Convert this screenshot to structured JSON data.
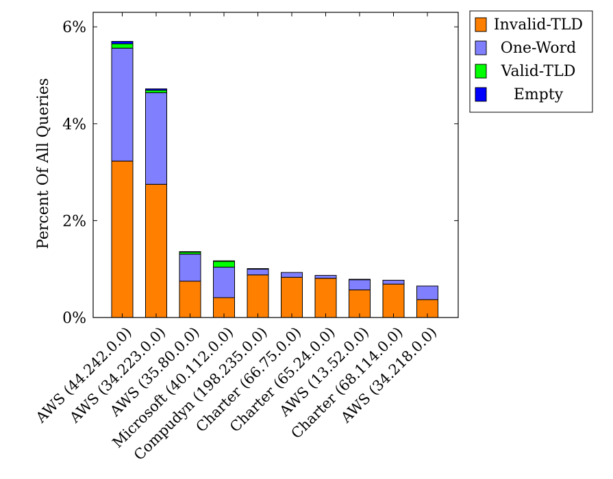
{
  "chart_data": {
    "type": "bar",
    "stacked": true,
    "ylabel": "Percent Of All Queries",
    "xlabel": "",
    "ylim": [
      0,
      6.3
    ],
    "yticks": [
      0,
      2,
      4,
      6
    ],
    "ytick_labels": [
      "0%",
      "2%",
      "4%",
      "6%"
    ],
    "categories": [
      "AWS (44.242.0.0)",
      "AWS (34.223.0.0)",
      "AWS (35.80.0.0)",
      "Microsoft (40.112.0.0)",
      "Compudyn (198.235.0.0)",
      "Charter (66.75.0.0)",
      "Charter (65.24.0.0)",
      "AWS (13.52.0.0)",
      "Charter (68.114.0.0)",
      "AWS (34.218.0.0)"
    ],
    "series": [
      {
        "name": "Invalid-TLD",
        "color": "#ff8000",
        "values": [
          3.23,
          2.75,
          0.75,
          0.41,
          0.88,
          0.83,
          0.81,
          0.57,
          0.69,
          0.37
        ]
      },
      {
        "name": "One-Word",
        "color": "#8080ff",
        "values": [
          2.33,
          1.89,
          0.56,
          0.63,
          0.12,
          0.1,
          0.06,
          0.21,
          0.08,
          0.28
        ]
      },
      {
        "name": "Valid-TLD",
        "color": "#00ff00",
        "values": [
          0.09,
          0.05,
          0.04,
          0.12,
          0.01,
          0.0,
          0.0,
          0.01,
          0.0,
          0.0
        ]
      },
      {
        "name": "Empty",
        "color": "#0000ff",
        "values": [
          0.05,
          0.03,
          0.01,
          0.01,
          0.0,
          0.0,
          0.0,
          0.0,
          0.0,
          0.0
        ]
      }
    ],
    "grid": false,
    "legend_position": "outside-top-right"
  }
}
